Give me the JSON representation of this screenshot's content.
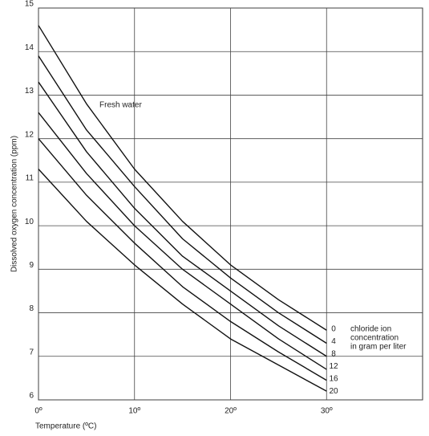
{
  "chart_data": {
    "type": "line",
    "y_label": "Dissolved oxygen concentration (ppm)",
    "x_label": "Temperature (ºC)",
    "annotations": [
      "Fresh water"
    ],
    "legend_title": [
      "chloride ion",
      "concentration",
      "in gram per liter"
    ],
    "x": [
      0,
      5,
      10,
      15,
      20,
      25,
      30
    ],
    "series": [
      {
        "name": "0",
        "color": "#111111",
        "values": [
          14.6,
          12.8,
          11.3,
          10.1,
          9.1,
          8.3,
          7.6
        ]
      },
      {
        "name": "4",
        "color": "#111111",
        "values": [
          13.9,
          12.2,
          10.9,
          9.7,
          8.8,
          8.0,
          7.3
        ]
      },
      {
        "name": "8",
        "color": "#111111",
        "values": [
          13.3,
          11.7,
          10.4,
          9.3,
          8.5,
          7.7,
          7.0
        ]
      },
      {
        "name": "12",
        "color": "#111111",
        "values": [
          12.6,
          11.2,
          10.0,
          9.0,
          8.2,
          7.4,
          6.7
        ]
      },
      {
        "name": "16",
        "color": "#111111",
        "values": [
          12.0,
          10.7,
          9.6,
          8.6,
          7.8,
          7.1,
          6.45
        ]
      },
      {
        "name": "20",
        "color": "#111111",
        "values": [
          11.3,
          10.1,
          9.1,
          8.2,
          7.4,
          6.8,
          6.2
        ]
      }
    ],
    "xlim": [
      0,
      40
    ],
    "xticks": [
      {
        "value": 0,
        "label": "0º"
      },
      {
        "value": 10,
        "label": "10º"
      },
      {
        "value": 20,
        "label": "20º"
      },
      {
        "value": 30,
        "label": "30º"
      }
    ],
    "ylim": [
      6,
      15
    ],
    "yticks": [
      6,
      7,
      8,
      9,
      10,
      11,
      12,
      13,
      14,
      15
    ],
    "grid": true
  }
}
